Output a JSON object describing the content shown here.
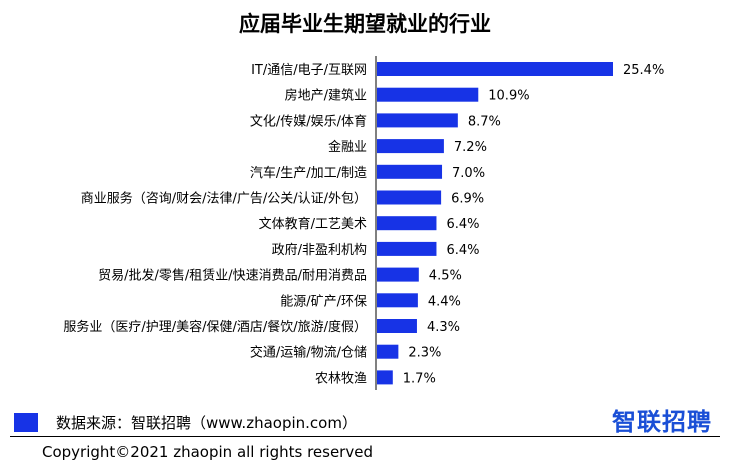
{
  "chart_data": {
    "type": "bar",
    "orientation": "horizontal",
    "title": "应届毕业生期望就业的行业",
    "categories": [
      "IT/通信/电子/互联网",
      "房地产/建筑业",
      "文化/传媒/娱乐/体育",
      "金融业",
      "汽车/生产/加工/制造",
      "商业服务（咨询/财会/法律/广告/公关/认证/外包）",
      "文体教育/工艺美术",
      "政府/非盈利机构",
      "贸易/批发/零售/租赁业/快速消费品/耐用消费品",
      "能源/矿产/环保",
      "服务业（医疗/护理/美容/保健/酒店/餐饮/旅游/度假）",
      "交通/运输/物流/仓储",
      "农林牧渔"
    ],
    "values": [
      25.4,
      10.9,
      8.7,
      7.2,
      7.0,
      6.9,
      6.4,
      6.4,
      4.5,
      4.4,
      4.3,
      2.3,
      1.7
    ],
    "value_labels": [
      "25.4%",
      "10.9%",
      "8.7%",
      "7.2%",
      "7.0%",
      "6.9%",
      "6.4%",
      "6.4%",
      "4.5%",
      "4.4%",
      "4.3%",
      "2.3%",
      "1.7%"
    ],
    "unit": "%",
    "color": "#1733e6",
    "grid": false
  },
  "source_label": "数据来源：智联招聘（www.zhaopin.com）",
  "logo_text": "智联招聘",
  "copyright": "Copyright©2021 zhaopin all rights reserved"
}
